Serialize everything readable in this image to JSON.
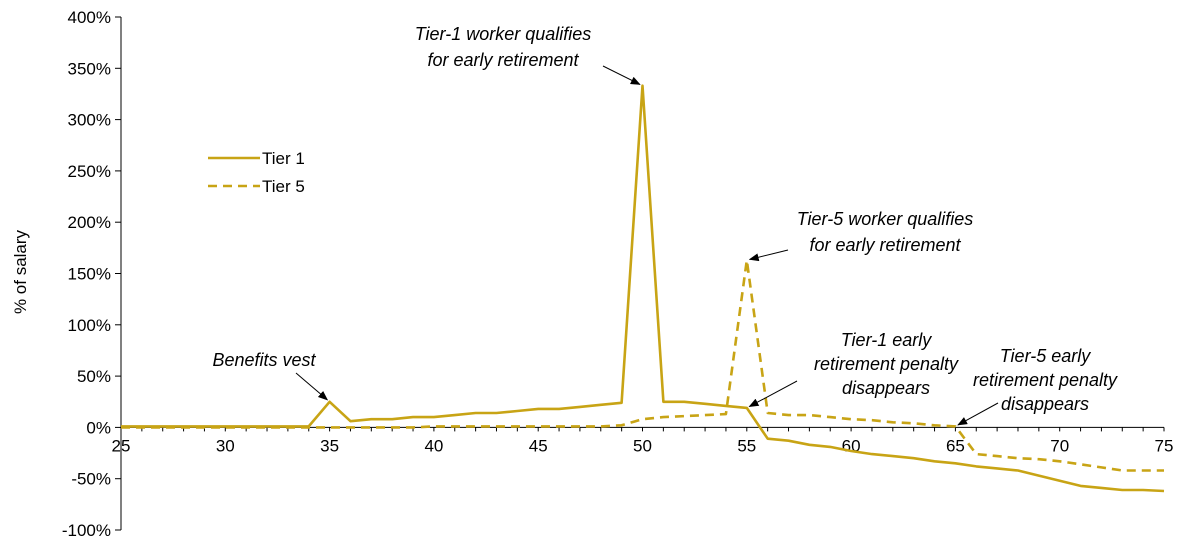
{
  "chart_data": {
    "type": "line",
    "title": "",
    "xlabel": "",
    "ylabel": "% of salary",
    "xlim": [
      25,
      75
    ],
    "ylim": [
      -100,
      400
    ],
    "x_ticks": [
      25,
      30,
      35,
      40,
      45,
      50,
      55,
      60,
      65,
      70,
      75
    ],
    "y_ticks": [
      -100,
      -50,
      0,
      50,
      100,
      150,
      200,
      250,
      300,
      350,
      400
    ],
    "y_tick_labels": [
      "-100%",
      "-50%",
      "0%",
      "50%",
      "100%",
      "150%",
      "200%",
      "250%",
      "300%",
      "350%",
      "400%"
    ],
    "x_tick_labels": [
      "25",
      "30",
      "35",
      "40",
      "45",
      "50",
      "55",
      "60",
      "65",
      "70",
      "75"
    ],
    "grid": false,
    "legend_position": "left",
    "color": "#C8A415",
    "series": [
      {
        "name": "Tier 1",
        "style": "solid",
        "x": [
          25,
          26,
          27,
          28,
          29,
          30,
          31,
          32,
          33,
          34,
          35,
          36,
          37,
          38,
          39,
          40,
          41,
          42,
          43,
          44,
          45,
          46,
          47,
          48,
          49,
          50,
          51,
          52,
          53,
          54,
          55,
          56,
          57,
          58,
          59,
          60,
          61,
          62,
          63,
          64,
          65,
          66,
          67,
          68,
          69,
          70,
          71,
          72,
          73,
          74,
          75
        ],
        "y": [
          1,
          1,
          1,
          1,
          1,
          1,
          1,
          1,
          1,
          1,
          25,
          6,
          8,
          8,
          10,
          10,
          12,
          14,
          14,
          16,
          18,
          18,
          20,
          22,
          24,
          333,
          25,
          25,
          23,
          21,
          19,
          -11,
          -13,
          -17,
          -19,
          -23,
          -26,
          -28,
          -30,
          -33,
          -35,
          -38,
          -40,
          -42,
          -47,
          -52,
          -57,
          -59,
          -61,
          -61,
          -62
        ]
      },
      {
        "name": "Tier 5",
        "style": "dashed",
        "x": [
          25,
          26,
          27,
          28,
          29,
          30,
          31,
          32,
          33,
          34,
          35,
          36,
          37,
          38,
          39,
          40,
          41,
          42,
          43,
          44,
          45,
          46,
          47,
          48,
          49,
          50,
          51,
          52,
          53,
          54,
          55,
          56,
          57,
          58,
          59,
          60,
          61,
          62,
          63,
          64,
          65,
          66,
          67,
          68,
          69,
          70,
          71,
          72,
          73,
          74,
          75
        ],
        "y": [
          0,
          0,
          0,
          0,
          0,
          0,
          0,
          0,
          0,
          0,
          0,
          0,
          0,
          0,
          0,
          1,
          1,
          1,
          1,
          1,
          1,
          1,
          1,
          1,
          2,
          8,
          10,
          11,
          12,
          13,
          163,
          14,
          12,
          12,
          10,
          8,
          7,
          5,
          4,
          2,
          1,
          -26,
          -28,
          -30,
          -31,
          -33,
          -36,
          -39,
          -42,
          -42,
          -42
        ]
      }
    ],
    "annotations": [
      {
        "lines": [
          "Tier-1 worker qualifies",
          "for early retirement"
        ],
        "target": [
          50,
          333
        ]
      },
      {
        "lines": [
          "Tier-5 worker qualifies",
          "for early retirement"
        ],
        "target": [
          55,
          163
        ]
      },
      {
        "lines": [
          "Benefits vest"
        ],
        "target": [
          35,
          25
        ]
      },
      {
        "lines": [
          "Tier-1 early",
          "retirement penalty",
          "disappears"
        ],
        "target": [
          55,
          19
        ]
      },
      {
        "lines": [
          "Tier-5 early",
          "retirement penalty",
          "disappears"
        ],
        "target": [
          65,
          1
        ]
      }
    ]
  }
}
